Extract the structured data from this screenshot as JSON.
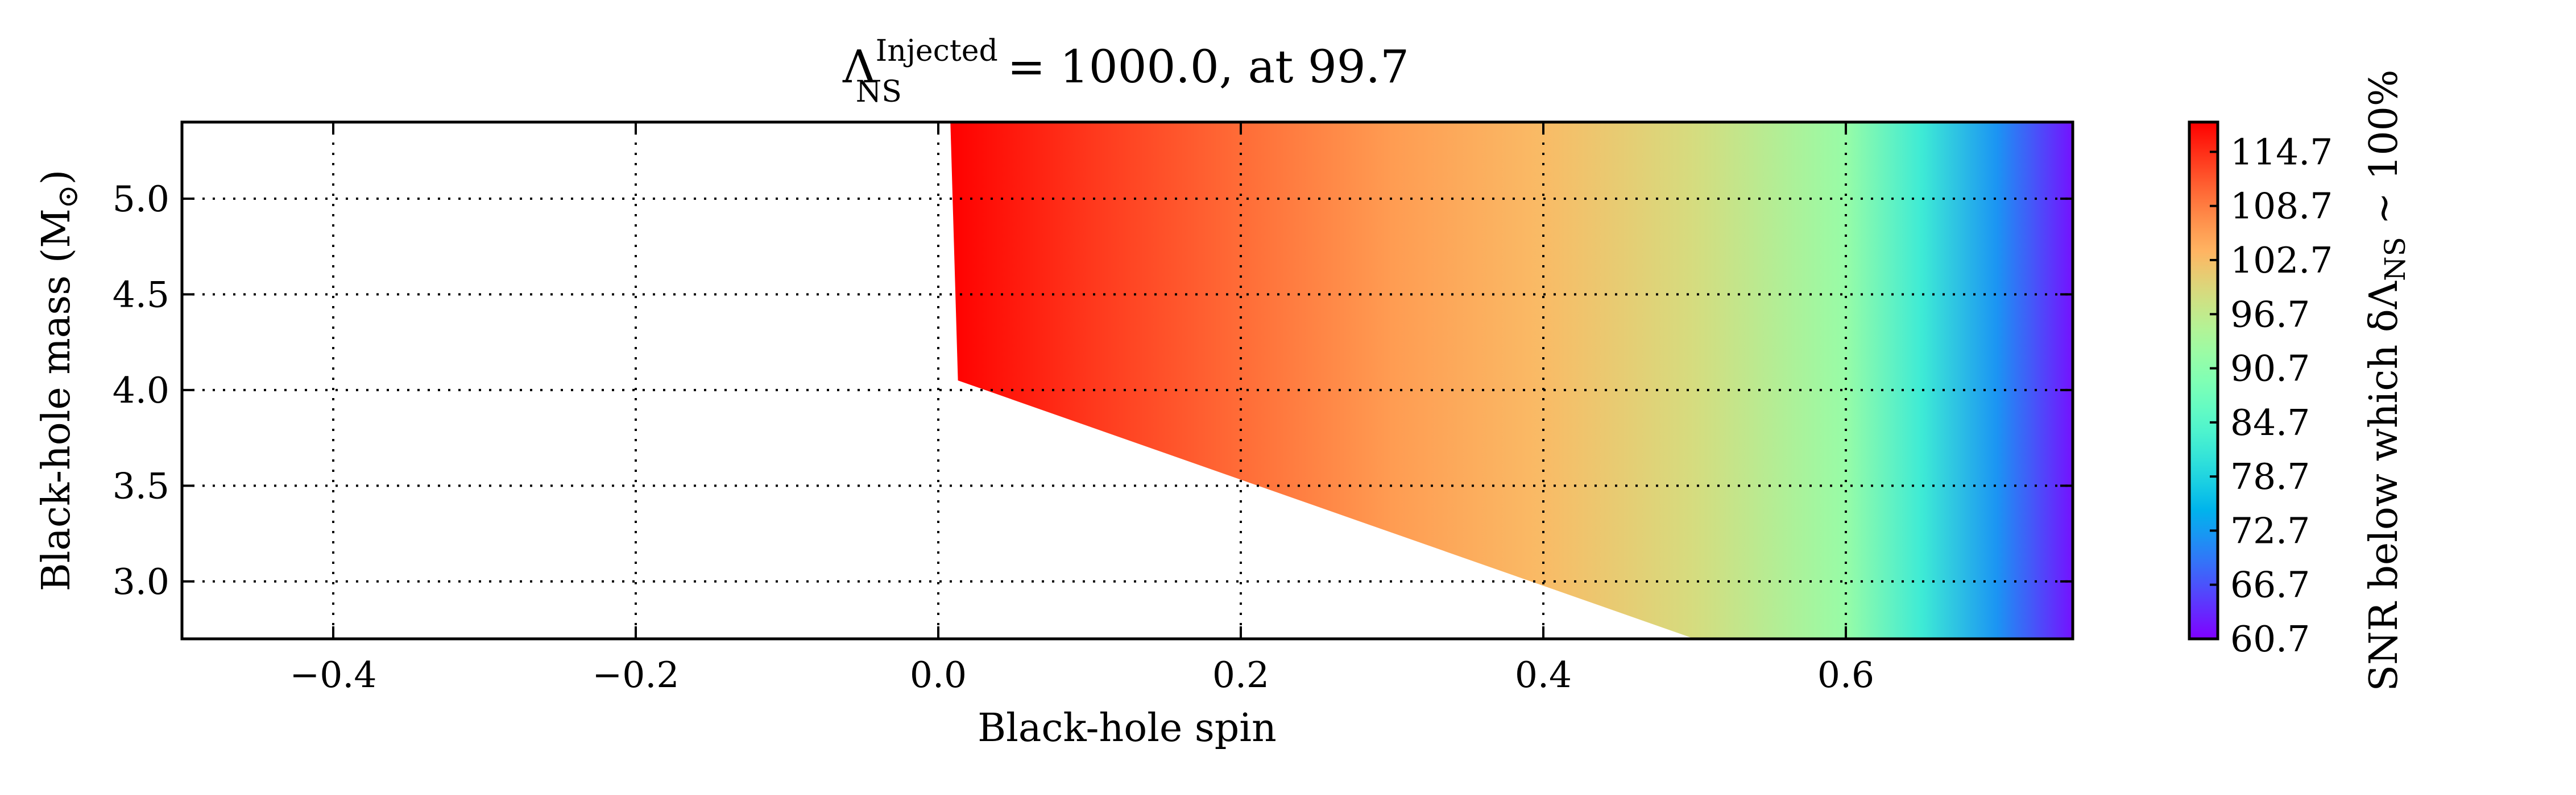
{
  "chart_data": {
    "type": "heatmap",
    "title_lhs": "Λ",
    "title_sup": "Injected",
    "title_sub": "NS",
    "title_rest": " = 1000.0, at 99.7",
    "xlabel": "Black-hole spin",
    "ylabel": "Black-hole mass (M",
    "ylabel_sub": "⊙",
    "ylabel_end": ")",
    "xlim": [
      -0.5,
      0.75
    ],
    "ylim": [
      2.7,
      5.4
    ],
    "xticks": [
      -0.4,
      -0.2,
      0.0,
      0.2,
      0.4,
      0.6
    ],
    "xtick_labels": [
      "−0.4",
      "−0.2",
      "0.0",
      "0.2",
      "0.4",
      "0.6"
    ],
    "yticks": [
      3.0,
      3.5,
      4.0,
      4.5,
      5.0
    ],
    "ytick_labels": [
      "3.0",
      "3.5",
      "4.0",
      "4.5",
      "5.0"
    ],
    "grid": true,
    "grid_style": "dotted",
    "colormap": "rainbow",
    "filled_region": [
      [
        0.008,
        5.4
      ],
      [
        0.75,
        5.4
      ],
      [
        0.75,
        2.7
      ],
      [
        0.5,
        2.7
      ],
      [
        0.013,
        4.05
      ]
    ],
    "value_gradient_x": [
      0.0,
      0.1,
      0.2,
      0.3,
      0.4,
      0.5,
      0.6,
      0.65,
      0.7,
      0.75
    ],
    "value_gradient_snr": [
      118,
      114,
      110,
      106,
      103,
      99,
      92,
      82,
      72,
      62
    ],
    "colorbar": {
      "label_prefix": "SNR below which δΛ",
      "label_sub": "NS",
      "label_suffix": " ~ 100%",
      "range": [
        60.7,
        118.0
      ],
      "ticks": [
        60.7,
        66.7,
        72.7,
        78.7,
        84.7,
        90.7,
        96.7,
        102.7,
        108.7,
        114.7
      ],
      "tick_labels": [
        "60.7",
        "66.7",
        "72.7",
        "78.7",
        "84.7",
        "90.7",
        "96.7",
        "102.7",
        "108.7",
        "114.7"
      ]
    }
  }
}
